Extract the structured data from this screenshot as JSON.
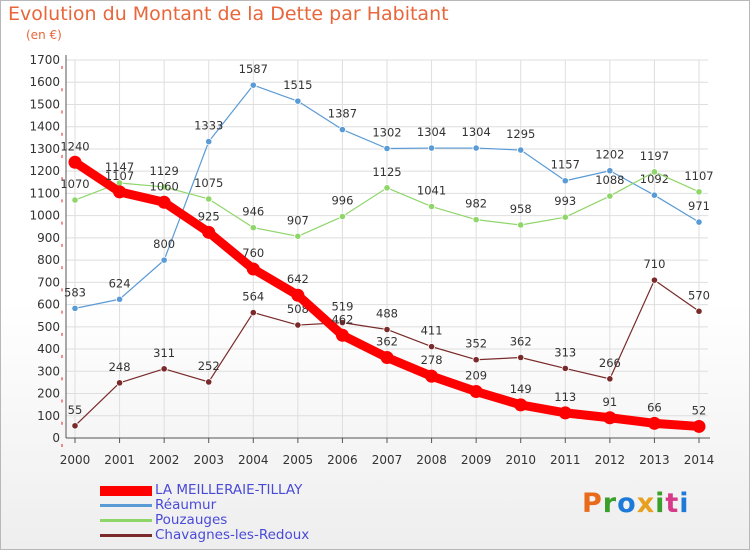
{
  "colors": {
    "title": "#e8663a",
    "legend_text": "#4a4ad8",
    "axis": "#555555",
    "grid": "#dedede",
    "tick_mark": "#e02020"
  },
  "brand": {
    "text": "Proxiti",
    "letter_colors": [
      "#e86a1a",
      "#3aa02a",
      "#1e7ad8",
      "#e8a020",
      "#3aa02a",
      "#d83a8a",
      "#1e7ad8"
    ]
  },
  "chart_data": {
    "type": "line",
    "title": "Evolution du Montant de la Dette par Habitant",
    "subtitle": "(en €)",
    "xlabel": "",
    "ylabel": "",
    "x": [
      "2000",
      "2001",
      "2002",
      "2003",
      "2004",
      "2005",
      "2006",
      "2007",
      "2008",
      "2009",
      "2010",
      "2011",
      "2012",
      "2013",
      "2014"
    ],
    "ylim": [
      0,
      1700
    ],
    "yticks": [
      "0",
      "100",
      "200",
      "300",
      "400",
      "500",
      "600",
      "700",
      "800",
      "900",
      "1000",
      "1100",
      "1200",
      "1300",
      "1400",
      "1500",
      "1600",
      "1700"
    ],
    "grid": true,
    "legend_position": "bottom-left",
    "series": [
      {
        "name": "Réaumur",
        "color": "#5b9bd5",
        "values": [
          583,
          624,
          800,
          1333,
          1587,
          1515,
          1387,
          1302,
          1304,
          1304,
          1295,
          1157,
          1202,
          1092,
          971
        ],
        "labels": [
          "583",
          "624",
          "800",
          "1333",
          "1587",
          "1515",
          "1387",
          "1302",
          "1304",
          "1304",
          "1295",
          "1157",
          "1202",
          "1092",
          "971"
        ]
      },
      {
        "name": "Pouzauges",
        "color": "#8fd66a",
        "values": [
          1070,
          1147,
          1129,
          1075,
          946,
          907,
          996,
          1125,
          1041,
          982,
          958,
          993,
          1088,
          1197,
          1107
        ],
        "labels": [
          "1070",
          "1147",
          "1129",
          "1075",
          "946",
          "907",
          "996",
          "1125",
          "1041",
          "982",
          "958",
          "993",
          "1088",
          "1197",
          "1107"
        ]
      },
      {
        "name": "Chavagnes-les-Redoux",
        "color": "#7a2a2a",
        "values": [
          55,
          248,
          311,
          252,
          564,
          508,
          519,
          488,
          411,
          352,
          362,
          313,
          266,
          710,
          570
        ],
        "labels": [
          "55",
          "248",
          "311",
          "252",
          "564",
          "508",
          "519",
          "488",
          "411",
          "352",
          "362",
          "313",
          "266",
          "710",
          "570"
        ]
      },
      {
        "name": "LA MEILLERAIE-TILLAY",
        "color": "#ff0000",
        "thick": true,
        "values": [
          1240,
          1107,
          1060,
          925,
          760,
          642,
          462,
          362,
          278,
          209,
          149,
          113,
          91,
          66,
          52
        ],
        "labels": [
          "1240",
          "1107",
          "1060",
          "925",
          "760",
          "642",
          "462",
          "362",
          "278",
          "209",
          "149",
          "113",
          "91",
          "66",
          "52"
        ]
      }
    ],
    "legend": [
      "LA MEILLERAIE-TILLAY",
      "Réaumur",
      "Pouzauges",
      "Chavagnes-les-Redoux"
    ]
  }
}
